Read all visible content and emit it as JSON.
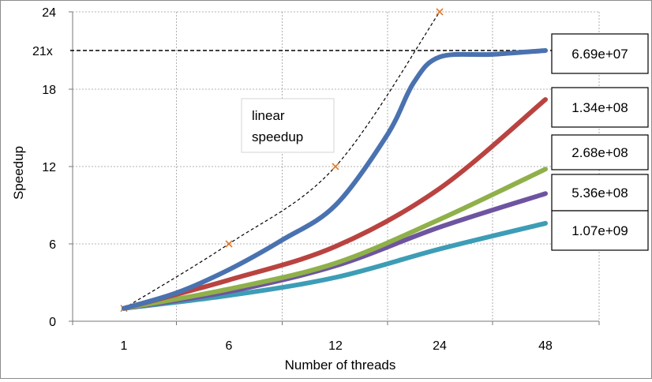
{
  "chart_data": {
    "type": "line",
    "title": "",
    "xlabel": "Number of threads",
    "ylabel": "Speedup",
    "categories": [
      "1",
      "6",
      "12",
      "24",
      "48"
    ],
    "ylim": [
      0,
      24
    ],
    "yticks": [
      0,
      6,
      12,
      18,
      24
    ],
    "grid": true,
    "series": [
      {
        "name": "6.69e+07",
        "color": "#4a72b0",
        "points": [
          [
            0,
            1.0
          ],
          [
            0.5,
            2.2
          ],
          [
            1,
            4.0
          ],
          [
            1.5,
            6.3
          ],
          [
            2,
            9.0
          ],
          [
            2.5,
            14.5
          ],
          [
            2.75,
            18.5
          ],
          [
            3,
            20.5
          ],
          [
            3.5,
            20.7
          ],
          [
            4,
            21.0
          ]
        ]
      },
      {
        "name": "1.34e+08",
        "color": "#b94340",
        "points": [
          [
            0,
            1.0
          ],
          [
            1,
            3.2
          ],
          [
            2,
            5.8
          ],
          [
            3,
            10.3
          ],
          [
            4,
            17.2
          ]
        ]
      },
      {
        "name": "2.68e+08",
        "color": "#8fb04a",
        "points": [
          [
            0,
            1.0
          ],
          [
            1,
            2.5
          ],
          [
            2,
            4.5
          ],
          [
            3,
            7.9
          ],
          [
            4,
            11.8
          ]
        ]
      },
      {
        "name": "5.36e+08",
        "color": "#6e54a0",
        "points": [
          [
            0,
            1.0
          ],
          [
            1,
            2.3
          ],
          [
            2,
            4.3
          ],
          [
            3,
            7.3
          ],
          [
            4,
            9.9
          ]
        ]
      },
      {
        "name": "1.07e+09",
        "color": "#3d9db6",
        "points": [
          [
            0,
            1.0
          ],
          [
            1,
            2.0
          ],
          [
            2,
            3.4
          ],
          [
            3,
            5.6
          ],
          [
            4,
            7.6
          ]
        ]
      }
    ],
    "reference_line": {
      "label": "21x",
      "value": 21
    },
    "linear_speedup": {
      "label_line1": "linear",
      "label_line2": "speedup",
      "points": [
        [
          0,
          1
        ],
        [
          1,
          6
        ],
        [
          2,
          12
        ],
        [
          3,
          24
        ]
      ]
    }
  }
}
